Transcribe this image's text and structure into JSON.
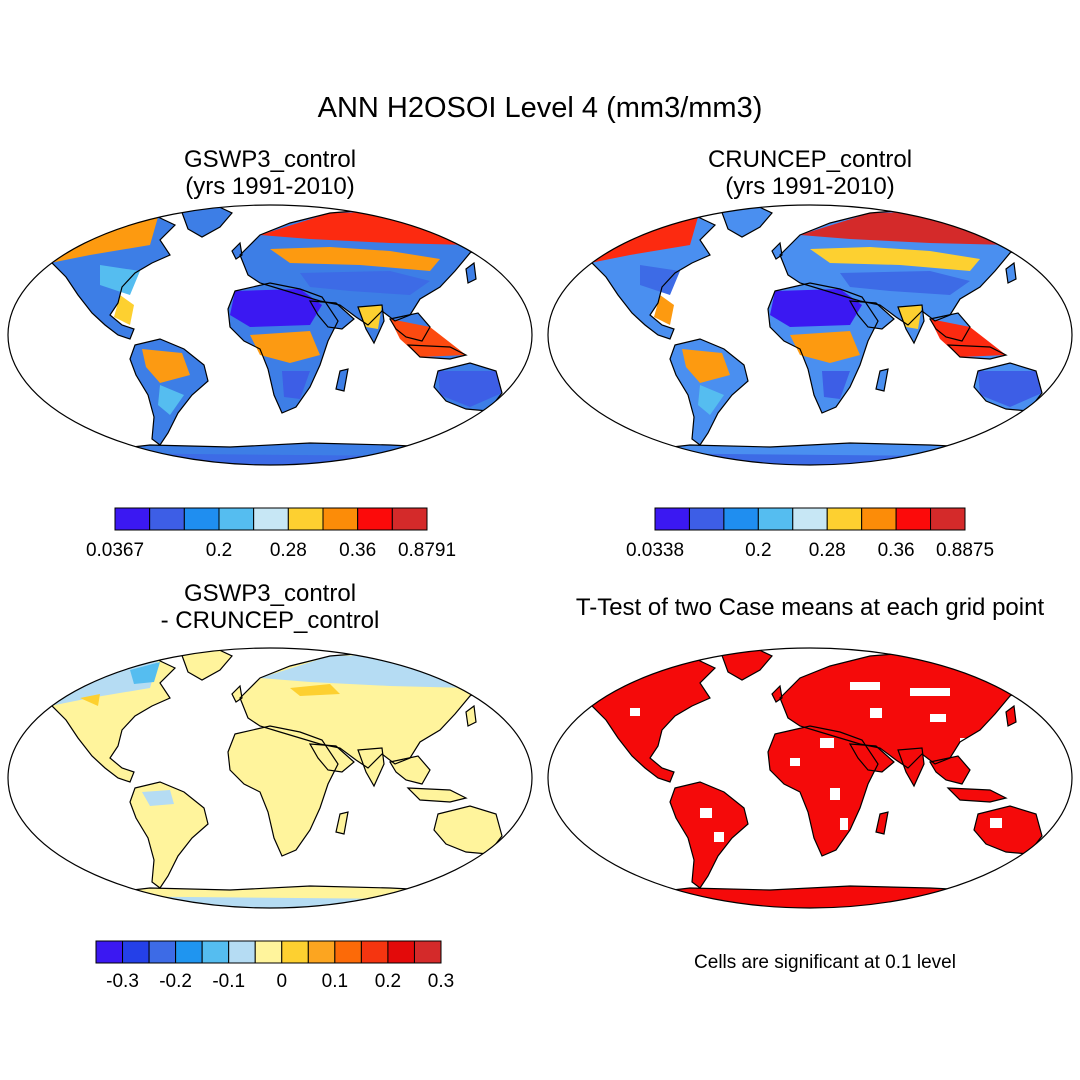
{
  "main_title": "ANN H2OSOI Level 4 (mm3/mm3)",
  "panels": [
    {
      "id": "gswp3",
      "title_line1": "GSWP3_control",
      "title_line2": "(yrs 1991-2010)"
    },
    {
      "id": "cruncep",
      "title_line1": "CRUNCEP_control",
      "title_line2": "(yrs 1991-2010)"
    },
    {
      "id": "difference",
      "title_line1": "GSWP3_control",
      "title_line2": "- CRUNCEP_control"
    },
    {
      "id": "ttest",
      "title_line1": "T-Test of two Case means at each grid point"
    }
  ],
  "colorbars": [
    {
      "id": "gswp3-colorbar",
      "colors": [
        "#3b18f2",
        "#3d5ee6",
        "#1f8ef0",
        "#55bdf0",
        "#c7e7f5",
        "#fdd030",
        "#fc8c08",
        "#fc0a0a",
        "#d42a2a"
      ],
      "labels": [
        "0.0367",
        "0.2",
        "0.28",
        "0.36",
        "0.8791"
      ],
      "label_at_boundary": [
        0,
        3,
        5,
        7,
        9
      ]
    },
    {
      "id": "cruncep-colorbar",
      "colors": [
        "#3b18f2",
        "#3d5ee6",
        "#1f8ef0",
        "#55bdf0",
        "#c7e7f5",
        "#fdd030",
        "#fc8c08",
        "#fc0a0a",
        "#d42a2a"
      ],
      "labels": [
        "0.0338",
        "0.2",
        "0.28",
        "0.36",
        "0.8875"
      ],
      "label_at_boundary": [
        0,
        3,
        5,
        7,
        9
      ]
    },
    {
      "id": "difference-colorbar",
      "colors": [
        "#3b18f2",
        "#2440e8",
        "#3d6be6",
        "#1f95f0",
        "#55bdf0",
        "#b5dcf3",
        "#fff49c",
        "#fdd030",
        "#fca520",
        "#fc6a08",
        "#f53510",
        "#e30a0a",
        "#d42a2a"
      ],
      "labels": [
        "-0.3",
        "-0.2",
        "-0.1",
        "0",
        "0.1",
        "0.2",
        "0.3"
      ],
      "label_at_boundary": [
        1,
        3,
        5,
        7,
        9,
        11,
        13
      ]
    }
  ],
  "significance_note": "Cells are significant at 0.1 level"
}
